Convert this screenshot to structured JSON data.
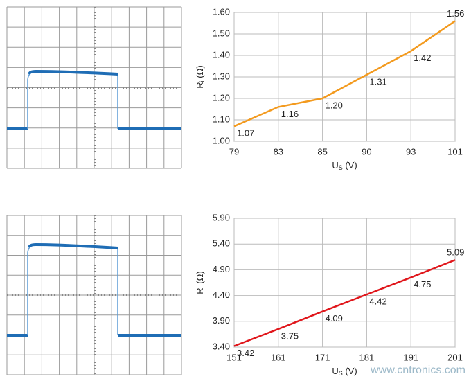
{
  "chart_data": [
    {
      "type": "line",
      "categories": [
        "79",
        "83",
        "85",
        "90",
        "93",
        "101"
      ],
      "series": [
        {
          "color": "#f39a1e",
          "values": [
            1.07,
            1.16,
            1.2,
            1.31,
            1.42,
            1.56
          ],
          "value_labels": [
            "1.07",
            "1.16",
            "1.20",
            "1.31",
            "1.42",
            "1.56"
          ]
        }
      ],
      "ylim": [
        1.0,
        1.6
      ],
      "yticks": [
        {
          "value": 1.0,
          "label": "1.00"
        },
        {
          "value": 1.1,
          "label": "1.10"
        },
        {
          "value": 1.2,
          "label": "1.20"
        },
        {
          "value": 1.3,
          "label": "1.30"
        },
        {
          "value": 1.4,
          "label": "1.40"
        },
        {
          "value": 1.5,
          "label": "1.50"
        },
        {
          "value": 1.6,
          "label": "1.60"
        }
      ],
      "ylabel": [
        "R",
        "i",
        " (Ω)"
      ],
      "xlabel": [
        "U",
        "S",
        " (V)"
      ],
      "grid": true
    },
    {
      "type": "line",
      "categories": [
        "151",
        "161",
        "171",
        "181",
        "191",
        "201"
      ],
      "series": [
        {
          "color": "#e0161b",
          "values": [
            3.42,
            3.75,
            4.09,
            4.42,
            4.75,
            5.09
          ]
        }
      ],
      "ylim": [
        3.4,
        5.9
      ],
      "yticks": [
        {
          "value": 3.4,
          "label": "3.40"
        },
        {
          "value": 3.9,
          "label": "3.90"
        },
        {
          "value": 4.4,
          "label": "4.40"
        },
        {
          "value": 4.9,
          "label": "4.90"
        },
        {
          "value": 5.4,
          "label": "5.40"
        },
        {
          "value": 5.9,
          "label": "5.90"
        }
      ],
      "ylabel": [
        "R",
        "i",
        " (Ω)"
      ],
      "xlabel": [
        "U",
        "S",
        " (V)"
      ],
      "grid": true
    }
  ],
  "watermark": "www.cntronics.com"
}
